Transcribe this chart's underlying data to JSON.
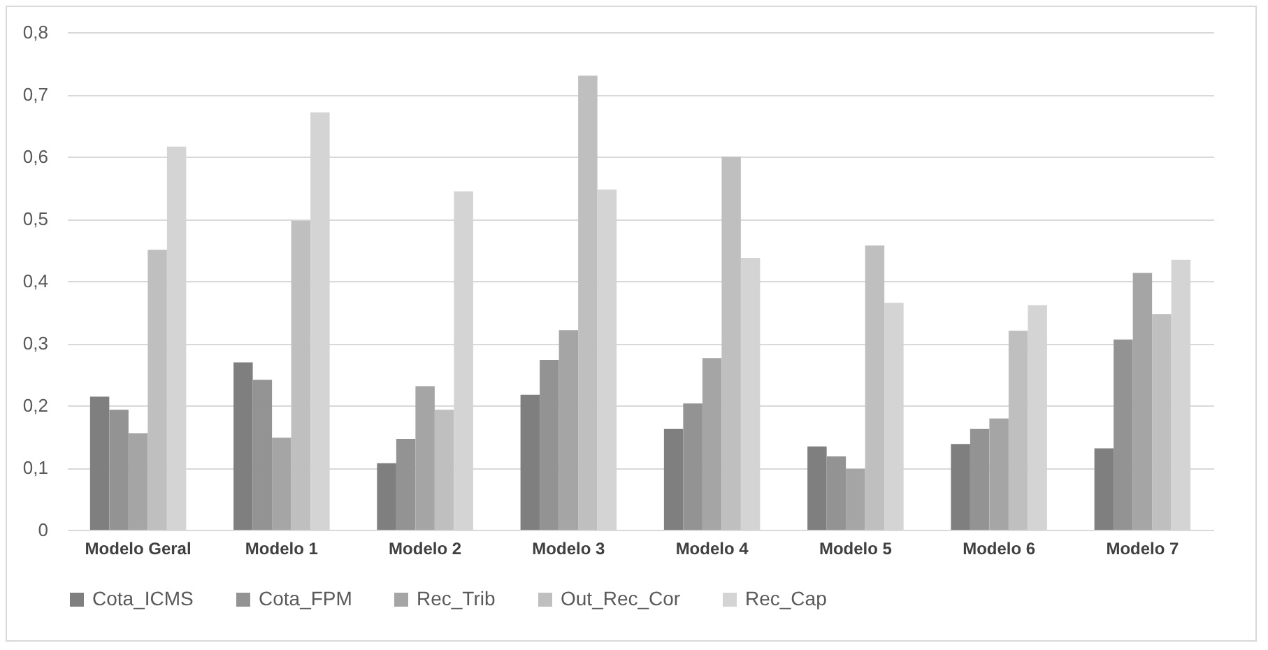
{
  "chart_data": {
    "type": "bar",
    "categories": [
      "Modelo Geral",
      "Modelo 1",
      "Modelo 2",
      "Modelo 3",
      "Modelo 4",
      "Modelo 5",
      "Modelo 6",
      "Modelo 7"
    ],
    "series": [
      {
        "name": "Cota_ICMS",
        "color": "#7f7f7f",
        "values": [
          0.214,
          0.269,
          0.107,
          0.217,
          0.162,
          0.134,
          0.138,
          0.131
        ]
      },
      {
        "name": "Cota_FPM",
        "color": "#939393",
        "values": [
          0.193,
          0.241,
          0.146,
          0.273,
          0.203,
          0.118,
          0.162,
          0.306
        ]
      },
      {
        "name": "Rec_Trib",
        "color": "#a5a5a5",
        "values": [
          0.155,
          0.148,
          0.231,
          0.321,
          0.276,
          0.098,
          0.179,
          0.413
        ]
      },
      {
        "name": "Out_Rec_Cor",
        "color": "#bfbfbf",
        "values": [
          0.45,
          0.497,
          0.193,
          0.73,
          0.6,
          0.457,
          0.32,
          0.347
        ]
      },
      {
        "name": "Rec_Cap",
        "color": "#d4d4d4",
        "values": [
          0.616,
          0.671,
          0.544,
          0.547,
          0.437,
          0.365,
          0.361,
          0.434
        ]
      }
    ],
    "ylim": [
      0,
      0.8
    ],
    "yticks": [
      {
        "value": 0,
        "label": "0"
      },
      {
        "value": 0.1,
        "label": "0,1"
      },
      {
        "value": 0.2,
        "label": "0,2"
      },
      {
        "value": 0.3,
        "label": "0,3"
      },
      {
        "value": 0.4,
        "label": "0,4"
      },
      {
        "value": 0.5,
        "label": "0,5"
      },
      {
        "value": 0.6,
        "label": "0,6"
      },
      {
        "value": 0.7,
        "label": "0,7"
      },
      {
        "value": 0.8,
        "label": "0,8"
      }
    ],
    "grid": "y",
    "legend": "bottom"
  }
}
